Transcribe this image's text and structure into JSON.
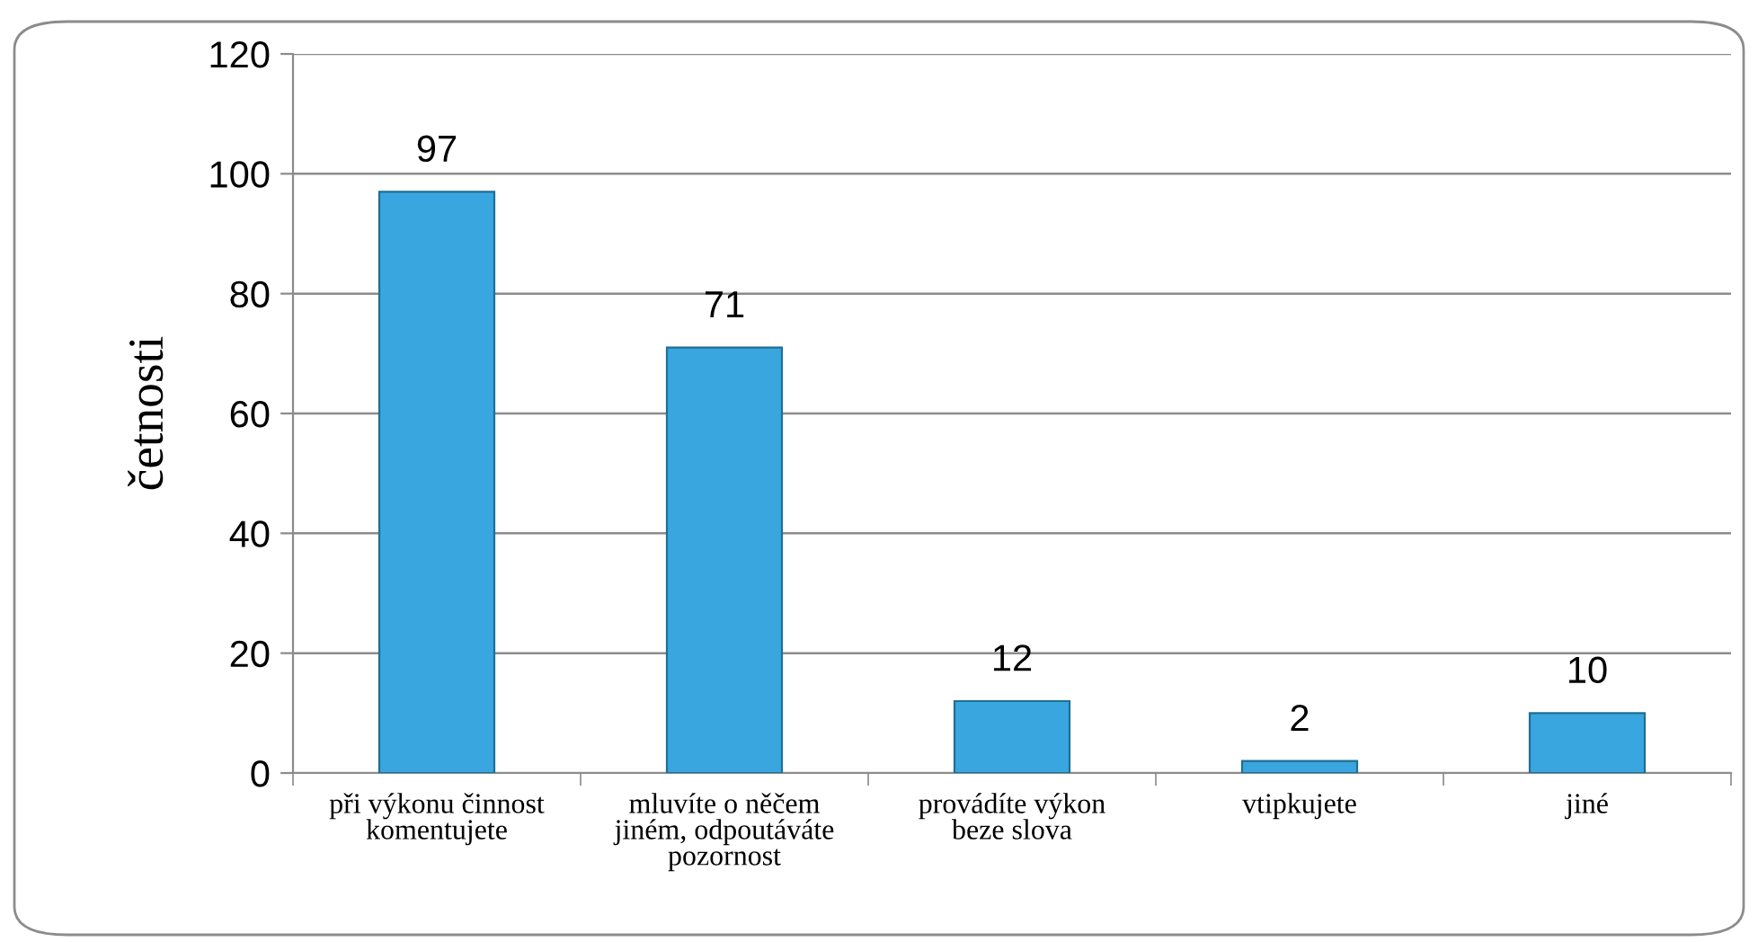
{
  "chart_data": {
    "type": "bar",
    "ylabel": "četnosti",
    "categories": [
      "při výkonu činnost\nkomentujete",
      "mluvíte o něčem\njiném, odpoutáváte\npozornost",
      "provádíte výkon\nbeze slova",
      "vtipkujete",
      "jiné"
    ],
    "values": [
      97,
      71,
      12,
      2,
      10
    ],
    "color": "#3aa6df",
    "ylim": [
      0,
      120
    ],
    "yticks": [
      0,
      20,
      40,
      60,
      80,
      100,
      120
    ],
    "grid": "y",
    "data_labels": true
  }
}
